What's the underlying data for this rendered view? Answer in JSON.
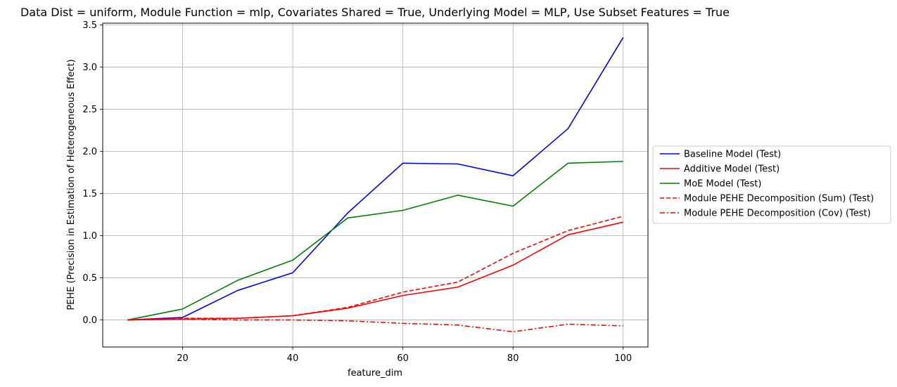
{
  "chart_data": {
    "type": "line",
    "title": "Data Dist = uniform, Module Function = mlp, Covariates Shared = True, Underlying Model = MLP, Use Subset Features = True",
    "xlabel": "feature_dim",
    "ylabel": "PEHE (Precision in Estimation of Heterogeneous Effect)",
    "xlim": [
      5.5,
      104.5
    ],
    "ylim": [
      -0.32,
      3.52
    ],
    "x_ticks": [
      20,
      40,
      60,
      80,
      100
    ],
    "y_ticks": [
      0.0,
      0.5,
      1.0,
      1.5,
      2.0,
      2.5,
      3.0,
      3.5
    ],
    "x_tick_labels": [
      "20",
      "40",
      "60",
      "80",
      "100"
    ],
    "y_tick_labels": [
      "0.0",
      "0.5",
      "1.0",
      "1.5",
      "2.0",
      "2.5",
      "3.0",
      "3.5"
    ],
    "grid": true,
    "legend_position": "outside-right",
    "x": [
      10,
      20,
      30,
      40,
      50,
      60,
      70,
      80,
      90,
      100
    ],
    "series": [
      {
        "name": "Baseline Model (Test)",
        "color": "#0000ff",
        "dash": "solid",
        "values": [
          0.0,
          0.03,
          0.35,
          0.56,
          1.27,
          1.86,
          1.85,
          1.71,
          2.27,
          3.35
        ]
      },
      {
        "name": "Additive Model (Test)",
        "color": "#ff0000",
        "dash": "solid",
        "values": [
          0.0,
          0.01,
          0.02,
          0.05,
          0.14,
          0.29,
          0.39,
          0.65,
          1.01,
          1.16
        ]
      },
      {
        "name": "MoE Model (Test)",
        "color": "#008000",
        "dash": "solid",
        "values": [
          0.0,
          0.13,
          0.47,
          0.71,
          1.21,
          1.3,
          1.48,
          1.35,
          1.86,
          1.88
        ]
      },
      {
        "name": "Module PEHE Decomposition (Sum) (Test)",
        "color": "#ff0000",
        "dash": "dashed",
        "values": [
          0.0,
          0.02,
          0.02,
          0.05,
          0.15,
          0.33,
          0.45,
          0.79,
          1.06,
          1.23
        ]
      },
      {
        "name": "Module PEHE Decomposition (Cov) (Test)",
        "color": "#ff0000",
        "dash": "dashdot",
        "values": [
          0.0,
          0.01,
          0.0,
          0.0,
          -0.01,
          -0.04,
          -0.06,
          -0.14,
          -0.05,
          -0.07
        ]
      }
    ]
  }
}
